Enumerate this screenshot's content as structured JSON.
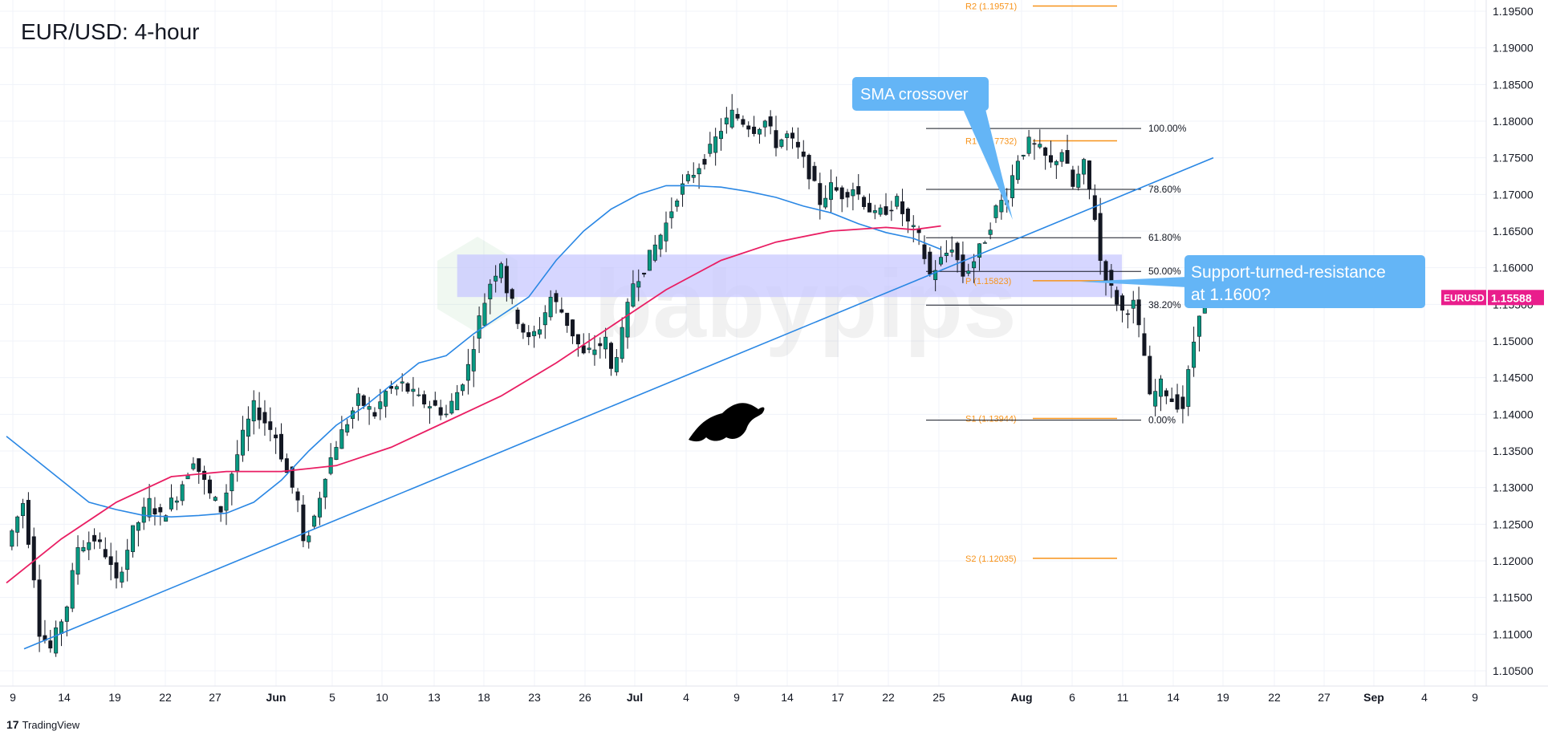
{
  "title": "EUR/USD: 4-hour",
  "footer_brand": "TradingView",
  "watermark": "babypips",
  "colors": {
    "background": "#ffffff",
    "grid": "#f0f3fa",
    "axis_text": "#131722",
    "up": "#089981",
    "down": "#131722",
    "sma_fast": "#2a87e4",
    "sma_slow": "#e91e63",
    "trendline": "#2a87e4",
    "zone": "#c8c8ff",
    "pivot": "#f7931a",
    "fib": "#131722",
    "callout": "#64b5f6",
    "price_tag": "#e91e8c"
  },
  "icons": [
    "bull-icon",
    "tradingview-logo-icon",
    "babypips-watermark-icon"
  ],
  "chart_data": {
    "type": "candlestick",
    "symbol": "EURUSD",
    "timeframe": "4-hour",
    "last_price": "1.15588",
    "x_axis_labels": [
      "9",
      "14",
      "19",
      "22",
      "27",
      "Jun",
      "5",
      "10",
      "13",
      "18",
      "23",
      "26",
      "Jul",
      "4",
      "9",
      "14",
      "17",
      "22",
      "25",
      "Aug",
      "6",
      "11",
      "14",
      "19",
      "22",
      "27",
      "Sep",
      "4",
      "9"
    ],
    "y_axis_labels": [
      "1.10500",
      "1.11000",
      "1.11500",
      "1.12000",
      "1.12500",
      "1.13000",
      "1.13500",
      "1.14000",
      "1.14500",
      "1.15000",
      "1.15500",
      "1.16000",
      "1.16500",
      "1.17000",
      "1.17500",
      "1.18000",
      "1.18500",
      "1.19000",
      "1.19500"
    ],
    "ylim": [
      1.0985,
      1.1965
    ],
    "price_path": [
      [
        0,
        1.122
      ],
      [
        3,
        1.128
      ],
      [
        5,
        1.118
      ],
      [
        6,
        1.1105
      ],
      [
        8,
        1.108
      ],
      [
        11,
        1.114
      ],
      [
        13,
        1.122
      ],
      [
        16,
        1.123
      ],
      [
        18,
        1.121
      ],
      [
        20,
        1.117
      ],
      [
        23,
        1.124
      ],
      [
        26,
        1.128
      ],
      [
        28,
        1.126
      ],
      [
        31,
        1.129
      ],
      [
        34,
        1.134
      ],
      [
        37,
        1.129
      ],
      [
        39,
        1.127
      ],
      [
        41,
        1.132
      ],
      [
        43,
        1.137
      ],
      [
        45,
        1.141
      ],
      [
        47,
        1.139
      ],
      [
        49,
        1.137
      ],
      [
        51,
        1.132
      ],
      [
        53,
        1.128
      ],
      [
        54,
        1.122
      ],
      [
        56,
        1.126
      ],
      [
        58,
        1.132
      ],
      [
        60,
        1.136
      ],
      [
        62,
        1.139
      ],
      [
        64,
        1.142
      ],
      [
        67,
        1.14
      ],
      [
        69,
        1.143
      ],
      [
        72,
        1.144
      ],
      [
        75,
        1.142
      ],
      [
        78,
        1.141
      ],
      [
        80,
        1.14
      ],
      [
        82,
        1.143
      ],
      [
        84,
        1.1465
      ],
      [
        86,
        1.153
      ],
      [
        88,
        1.158
      ],
      [
        90,
        1.161
      ],
      [
        91,
        1.157
      ],
      [
        93,
        1.153
      ],
      [
        95,
        1.15
      ],
      [
        97,
        1.152
      ],
      [
        99,
        1.156
      ],
      [
        101,
        1.154
      ],
      [
        103,
        1.151
      ],
      [
        105,
        1.148
      ],
      [
        107,
        1.149
      ],
      [
        109,
        1.15
      ],
      [
        110,
        1.146
      ],
      [
        112,
        1.151
      ],
      [
        114,
        1.158
      ],
      [
        116,
        1.16
      ],
      [
        118,
        1.163
      ],
      [
        120,
        1.166
      ],
      [
        122,
        1.17
      ],
      [
        124,
        1.172
      ],
      [
        126,
        1.174
      ],
      [
        128,
        1.176
      ],
      [
        130,
        1.179
      ],
      [
        132,
        1.181
      ],
      [
        134,
        1.18
      ],
      [
        136,
        1.179
      ],
      [
        138,
        1.18
      ],
      [
        140,
        1.177
      ],
      [
        142,
        1.178
      ],
      [
        144,
        1.176
      ],
      [
        146,
        1.173
      ],
      [
        148,
        1.169
      ],
      [
        150,
        1.171
      ],
      [
        152,
        1.17
      ],
      [
        154,
        1.171
      ],
      [
        156,
        1.169
      ],
      [
        158,
        1.167
      ],
      [
        160,
        1.168
      ],
      [
        162,
        1.169
      ],
      [
        164,
        1.166
      ],
      [
        166,
        1.164
      ],
      [
        168,
        1.159
      ],
      [
        170,
        1.161
      ],
      [
        172,
        1.163
      ],
      [
        174,
        1.159
      ],
      [
        176,
        1.161
      ],
      [
        178,
        1.164
      ],
      [
        180,
        1.168
      ],
      [
        182,
        1.17
      ],
      [
        184,
        1.175
      ],
      [
        186,
        1.177
      ],
      [
        188,
        1.176
      ],
      [
        190,
        1.174
      ],
      [
        192,
        1.176
      ],
      [
        194,
        1.171
      ],
      [
        196,
        1.174
      ],
      [
        198,
        1.167
      ],
      [
        199,
        1.161
      ],
      [
        201,
        1.157
      ],
      [
        203,
        1.154
      ],
      [
        205,
        1.155
      ],
      [
        207,
        1.148
      ],
      [
        208,
        1.142
      ],
      [
        210,
        1.144
      ],
      [
        212,
        1.142
      ],
      [
        214,
        1.141
      ],
      [
        216,
        1.15
      ],
      [
        218,
        1.1585
      ],
      [
        220,
        1.157
      ],
      [
        222,
        1.158
      ],
      [
        224,
        1.1559
      ]
    ],
    "sma_100_points": [
      [
        0,
        1.137
      ],
      [
        5,
        1.134
      ],
      [
        10,
        1.131
      ],
      [
        15,
        1.128
      ],
      [
        20,
        1.127
      ],
      [
        25,
        1.1262
      ],
      [
        30,
        1.126
      ],
      [
        35,
        1.1262
      ],
      [
        40,
        1.1265
      ],
      [
        45,
        1.128
      ],
      [
        50,
        1.131
      ],
      [
        55,
        1.135
      ],
      [
        60,
        1.1385
      ],
      [
        65,
        1.141
      ],
      [
        70,
        1.144
      ],
      [
        75,
        1.147
      ],
      [
        80,
        1.148
      ],
      [
        85,
        1.151
      ],
      [
        90,
        1.1535
      ],
      [
        95,
        1.156
      ],
      [
        100,
        1.161
      ],
      [
        105,
        1.165
      ],
      [
        110,
        1.168
      ],
      [
        115,
        1.17
      ],
      [
        120,
        1.1712
      ],
      [
        125,
        1.1712
      ],
      [
        130,
        1.171
      ],
      [
        135,
        1.1704
      ],
      [
        140,
        1.1696
      ],
      [
        145,
        1.1684
      ],
      [
        150,
        1.1675
      ],
      [
        155,
        1.166
      ],
      [
        160,
        1.1648
      ],
      [
        165,
        1.164
      ],
      [
        170,
        1.1625
      ]
    ],
    "sma_200_points": [
      [
        0,
        1.117
      ],
      [
        10,
        1.123
      ],
      [
        20,
        1.128
      ],
      [
        30,
        1.1315
      ],
      [
        40,
        1.1322
      ],
      [
        50,
        1.1322
      ],
      [
        60,
        1.133
      ],
      [
        70,
        1.1355
      ],
      [
        80,
        1.139
      ],
      [
        90,
        1.1425
      ],
      [
        100,
        1.147
      ],
      [
        110,
        1.152
      ],
      [
        120,
        1.157
      ],
      [
        130,
        1.161
      ],
      [
        140,
        1.1635
      ],
      [
        150,
        1.165
      ],
      [
        160,
        1.1655
      ],
      [
        165,
        1.1652
      ],
      [
        170,
        1.1657
      ]
    ],
    "trendline": {
      "from": [
        0,
        1.108
      ],
      "to": [
        240,
        1.175
      ]
    },
    "zone": {
      "from_bar": 82,
      "to_bar": 224,
      "low": 1.156,
      "high": 1.1618
    },
    "fibonacci": [
      {
        "label": "100.00%",
        "price": 1.179
      },
      {
        "label": "78.60%",
        "price": 1.1707
      },
      {
        "label": "61.80%",
        "price": 1.1641
      },
      {
        "label": "50.00%",
        "price": 1.1595
      },
      {
        "label": "38.20%",
        "price": 1.1549
      },
      {
        "label": "0.00%",
        "price": 1.1392
      }
    ],
    "pivots": [
      {
        "label": "R2 (1.19571)",
        "price": 1.19571
      },
      {
        "label": "R1 (1.17732)",
        "price": 1.17732
      },
      {
        "label": "P (1.15823)",
        "price": 1.15823
      },
      {
        "label": "S1 (1.13944)",
        "price": 1.13944
      },
      {
        "label": "S2 (1.12035)",
        "price": 1.12035
      }
    ],
    "annotations": [
      {
        "id": "sma-crossover",
        "text": "SMA crossover"
      },
      {
        "id": "resistance",
        "text": "Support-turned-resistance at 1.1600?"
      }
    ]
  }
}
